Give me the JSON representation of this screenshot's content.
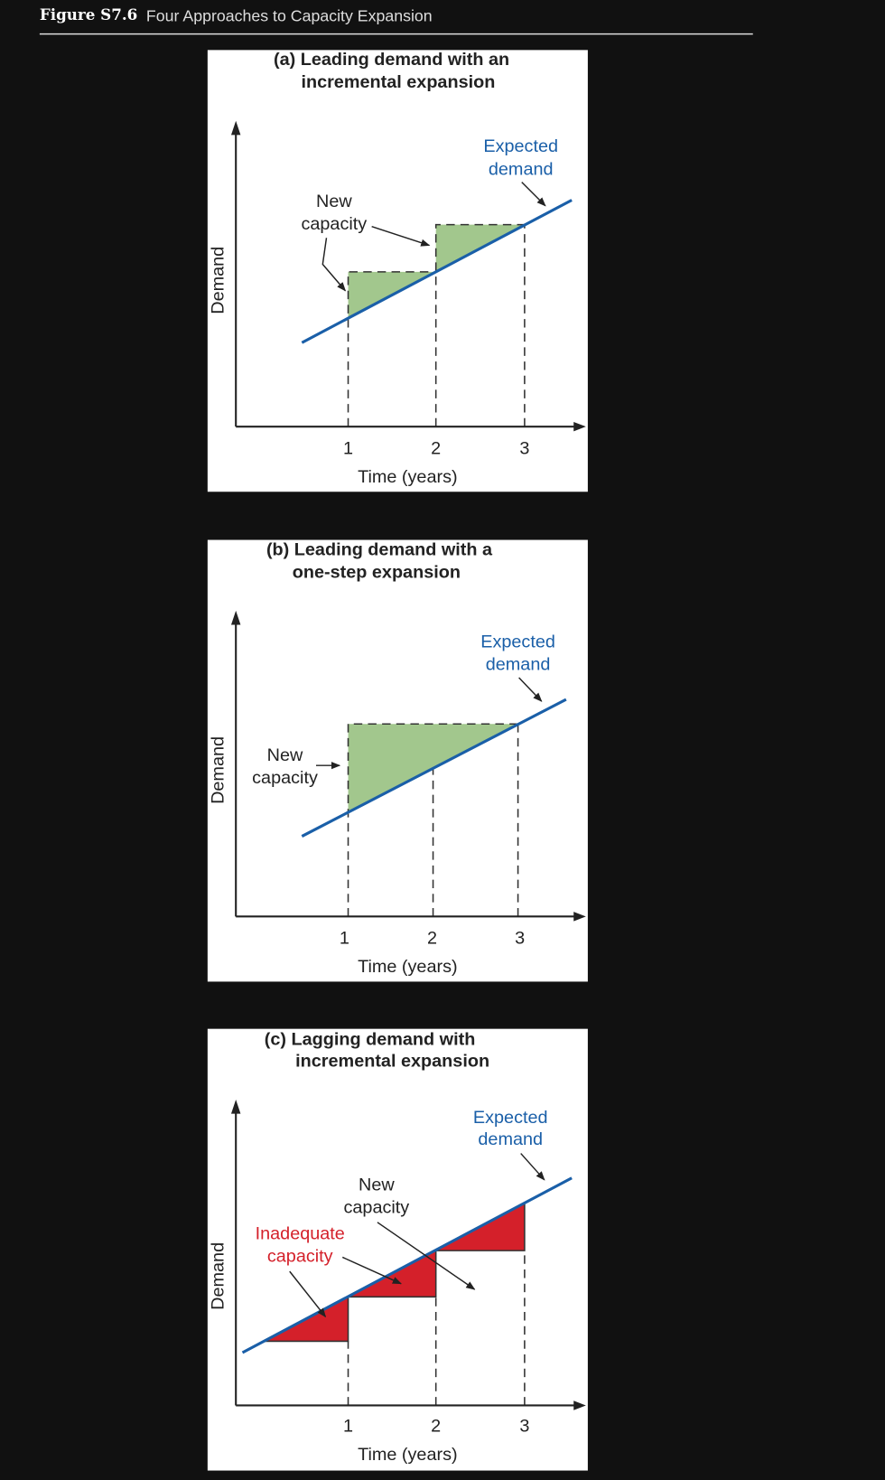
{
  "header": {
    "label": "Figure S7.6",
    "title": "Four Approaches to Capacity Expansion"
  },
  "panels": [
    {
      "title_lines": [
        "(a) Leading demand with an",
        "incremental expansion"
      ],
      "y_label": "Demand",
      "x_label": "Time (years)",
      "x_ticks": [
        "1",
        "2",
        "3"
      ],
      "new_capacity": [
        "New",
        "capacity"
      ],
      "expected_demand": [
        "Expected",
        "demand"
      ]
    },
    {
      "title_lines": [
        "(b) Leading demand with a",
        "one-step expansion"
      ],
      "y_label": "Demand",
      "x_label": "Time (years)",
      "x_ticks": [
        "1",
        "2",
        "3"
      ],
      "new_capacity": [
        "New",
        "capacity"
      ],
      "expected_demand": [
        "Expected",
        "demand"
      ]
    },
    {
      "title_lines": [
        "(c) Lagging demand with",
        "incremental expansion"
      ],
      "y_label": "Demand",
      "x_label": "Time (years)",
      "x_ticks": [
        "1",
        "2",
        "3"
      ],
      "new_capacity": [
        "New",
        "capacity"
      ],
      "inadequate_capacity": [
        "Inadequate",
        "capacity"
      ],
      "expected_demand": [
        "Expected",
        "demand"
      ]
    }
  ]
}
